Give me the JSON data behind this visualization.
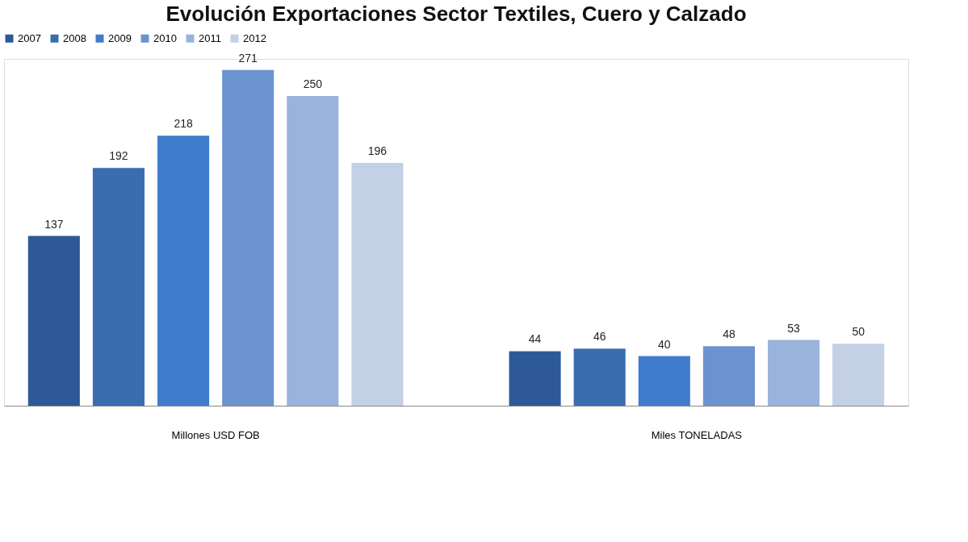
{
  "chart_data": {
    "type": "bar",
    "title": "Evolución Exportaciones Sector Textiles, Cuero y Calzado",
    "categories": [
      "Millones USD FOB",
      "Miles TONELADAS"
    ],
    "series": [
      {
        "name": "2007",
        "color": "#2d5a96",
        "values": [
          137,
          44
        ]
      },
      {
        "name": "2008",
        "color": "#3a6cb0",
        "values": [
          192,
          46
        ]
      },
      {
        "name": "2009",
        "color": "#3f7ccc",
        "values": [
          218,
          40
        ]
      },
      {
        "name": "2010",
        "color": "#6b93d0",
        "values": [
          271,
          48
        ]
      },
      {
        "name": "2011",
        "color": "#9ab3dc",
        "values": [
          250,
          53
        ]
      },
      {
        "name": "2012",
        "color": "#c4d0e6",
        "values": [
          196,
          50
        ]
      }
    ],
    "data_labels": true,
    "legend": "top",
    "grid": false
  }
}
